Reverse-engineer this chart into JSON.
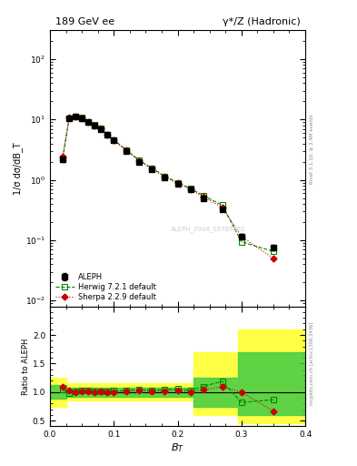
{
  "title_left": "189 GeV ee",
  "title_right": "γ*/Z (Hadronic)",
  "ylabel_main": "1/σ dσ/dB_T",
  "ylabel_ratio": "Ratio to ALEPH",
  "xlabel": "B_T",
  "right_label_top": "Rivet 3.1.10, ≥ 3.4M events",
  "right_label_bot": "mcplots.cern.ch [arXiv:1306.3436]",
  "watermark": "ALEPH_2004_S5765862",
  "aleph_x": [
    0.02,
    0.03,
    0.04,
    0.05,
    0.06,
    0.07,
    0.08,
    0.09,
    0.1,
    0.12,
    0.14,
    0.16,
    0.18,
    0.2,
    0.22,
    0.24,
    0.27,
    0.3,
    0.35
  ],
  "aleph_y": [
    2.2,
    10.5,
    11.0,
    10.5,
    9.0,
    8.0,
    7.0,
    5.5,
    4.5,
    3.0,
    2.0,
    1.5,
    1.1,
    0.85,
    0.7,
    0.5,
    0.32,
    0.115,
    0.075
  ],
  "aleph_yerr": [
    0.25,
    0.5,
    0.5,
    0.5,
    0.4,
    0.35,
    0.3,
    0.25,
    0.22,
    0.15,
    0.1,
    0.08,
    0.06,
    0.05,
    0.04,
    0.03,
    0.02,
    0.01,
    0.008
  ],
  "herwig_x": [
    0.02,
    0.03,
    0.04,
    0.05,
    0.06,
    0.07,
    0.08,
    0.09,
    0.1,
    0.12,
    0.14,
    0.16,
    0.18,
    0.2,
    0.22,
    0.24,
    0.27,
    0.3,
    0.35
  ],
  "herwig_y": [
    2.3,
    10.3,
    11.2,
    10.8,
    9.2,
    8.1,
    7.1,
    5.6,
    4.6,
    3.1,
    2.1,
    1.55,
    1.15,
    0.9,
    0.72,
    0.55,
    0.38,
    0.094,
    0.065
  ],
  "sherpa_x": [
    0.02,
    0.03,
    0.04,
    0.05,
    0.06,
    0.07,
    0.08,
    0.09,
    0.1,
    0.12,
    0.14,
    0.16,
    0.18,
    0.2,
    0.22,
    0.24,
    0.27,
    0.3,
    0.35
  ],
  "sherpa_y": [
    2.4,
    10.8,
    11.0,
    10.6,
    9.1,
    8.0,
    7.05,
    5.5,
    4.5,
    3.05,
    2.05,
    1.52,
    1.12,
    0.88,
    0.7,
    0.52,
    0.35,
    0.115,
    0.05
  ],
  "ratio_herwig": [
    1.045,
    0.981,
    1.018,
    1.029,
    1.022,
    1.013,
    1.014,
    1.018,
    1.022,
    1.033,
    1.05,
    1.033,
    1.045,
    1.059,
    1.029,
    1.1,
    1.188,
    0.818,
    0.867
  ],
  "ratio_sherpa": [
    1.09,
    1.029,
    1.0,
    1.01,
    1.011,
    1.0,
    1.007,
    1.0,
    1.0,
    1.017,
    1.025,
    1.013,
    1.018,
    1.035,
    1.0,
    1.04,
    1.094,
    1.0,
    0.667
  ],
  "band_yellow_x": [
    0.0,
    0.025,
    0.075,
    0.125,
    0.175,
    0.225,
    0.255,
    0.295,
    0.325,
    0.4
  ],
  "band_yellow_lo": [
    0.75,
    0.75,
    0.85,
    0.85,
    0.85,
    0.85,
    0.6,
    0.6,
    0.45,
    0.45
  ],
  "band_yellow_hi": [
    1.25,
    1.25,
    1.15,
    1.15,
    1.15,
    1.15,
    1.7,
    1.7,
    2.1,
    2.1
  ],
  "band_green_x": [
    0.0,
    0.025,
    0.075,
    0.125,
    0.175,
    0.225,
    0.255,
    0.295,
    0.325,
    0.4
  ],
  "band_green_lo": [
    0.88,
    0.88,
    0.92,
    0.92,
    0.92,
    0.92,
    0.75,
    0.75,
    0.6,
    0.6
  ],
  "band_green_hi": [
    1.12,
    1.12,
    1.08,
    1.08,
    1.08,
    1.08,
    1.25,
    1.25,
    1.7,
    1.7
  ],
  "color_aleph": "#000000",
  "color_herwig": "#008800",
  "color_sherpa": "#cc0000",
  "color_yellow": "#ffff44",
  "color_green": "#44cc44",
  "xlim": [
    0.0,
    0.4
  ],
  "ylim_main": [
    0.008,
    300
  ],
  "ylim_ratio": [
    0.4,
    2.5
  ],
  "ratio_yticks": [
    0.5,
    1.0,
    1.5,
    2.0
  ],
  "main_yticks": [
    0.01,
    0.1,
    1,
    10,
    100
  ]
}
